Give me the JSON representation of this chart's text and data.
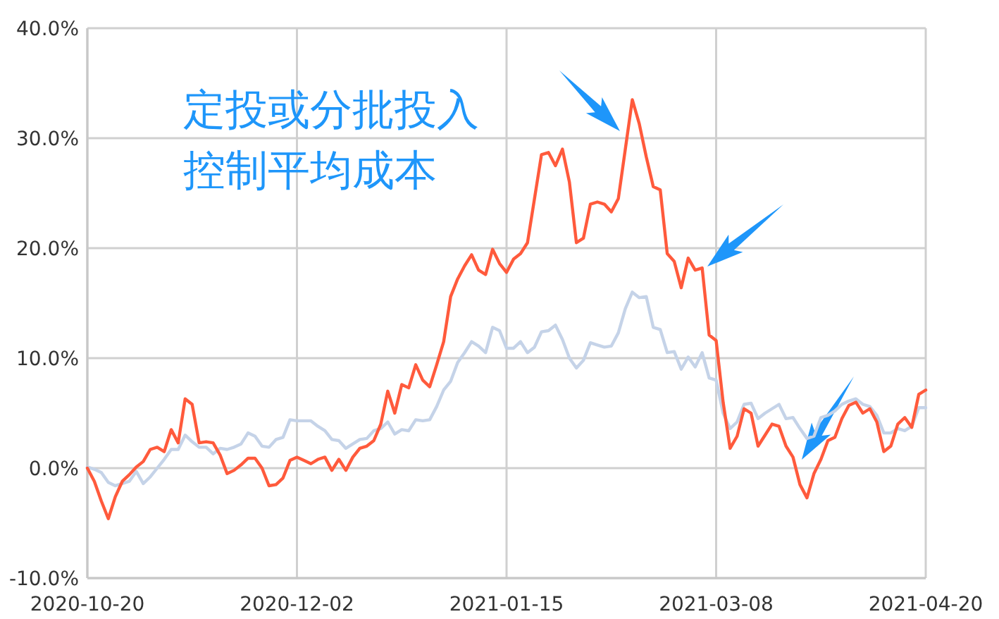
{
  "chart_data": {
    "type": "line",
    "categories": [
      "2020-10-20",
      null,
      null,
      null,
      null,
      null,
      null,
      null,
      null,
      null,
      null,
      null,
      null,
      null,
      null,
      null,
      null,
      null,
      null,
      null,
      null,
      null,
      null,
      null,
      null,
      null,
      null,
      null,
      null,
      null,
      "2020-12-02",
      null,
      null,
      null,
      null,
      null,
      null,
      null,
      null,
      null,
      null,
      null,
      null,
      null,
      null,
      null,
      null,
      null,
      null,
      null,
      null,
      null,
      null,
      null,
      null,
      null,
      null,
      null,
      null,
      null,
      "2021-01-15",
      null,
      null,
      null,
      null,
      null,
      null,
      null,
      null,
      null,
      null,
      null,
      null,
      null,
      null,
      null,
      null,
      null,
      null,
      null,
      null,
      null,
      null,
      null,
      null,
      null,
      null,
      null,
      null,
      null,
      "2021-03-08",
      null,
      null,
      null,
      null,
      null,
      null,
      null,
      null,
      null,
      null,
      null,
      null,
      null,
      null,
      null,
      null,
      null,
      null,
      null,
      null,
      null,
      null,
      null,
      null,
      null,
      null,
      null,
      null,
      null,
      "2021-04-20"
    ],
    "series": [
      {
        "color": "#c5d3e8",
        "values": [
          0.1,
          -0.1,
          -0.4,
          -1.3,
          -1.6,
          -1.4,
          -1.2,
          -0.3,
          -1.4,
          -0.8,
          0.0,
          0.8,
          1.7,
          1.7,
          3.0,
          2.4,
          1.9,
          1.9,
          1.3,
          1.8,
          1.7,
          1.9,
          2.2,
          3.2,
          2.9,
          2.0,
          1.9,
          2.6,
          2.8,
          4.4,
          4.3,
          4.3,
          4.3,
          3.8,
          3.4,
          2.6,
          2.5,
          1.8,
          2.2,
          2.6,
          2.7,
          3.4,
          3.6,
          4.2,
          3.1,
          3.5,
          3.4,
          4.4,
          4.3,
          4.4,
          5.6,
          7.1,
          7.9,
          9.6,
          10.5,
          11.5,
          11.1,
          10.5,
          12.8,
          12.5,
          10.9,
          10.9,
          11.5,
          10.5,
          11.0,
          12.4,
          12.5,
          13.0,
          11.7,
          10.0,
          9.1,
          9.8,
          11.4,
          11.2,
          11.0,
          11.1,
          12.3,
          14.5,
          16.0,
          15.5,
          15.6,
          12.8,
          12.6,
          10.5,
          10.6,
          9.0,
          10.1,
          9.2,
          10.5,
          8.2,
          8.0,
          5.0,
          3.6,
          4.2,
          5.8,
          5.9,
          4.5,
          5.0,
          5.4,
          5.8,
          4.5,
          4.6,
          3.6,
          2.7,
          2.9,
          4.6,
          4.8,
          5.2,
          5.8,
          6.1,
          6.3,
          5.8,
          5.6,
          4.8,
          3.2,
          3.2,
          3.6,
          3.4,
          3.8,
          5.5,
          5.5
        ]
      },
      {
        "color": "#ff5a3c",
        "values": [
          0.0,
          -1.2,
          -3.0,
          -4.6,
          -2.6,
          -1.2,
          -0.6,
          0.1,
          0.6,
          1.7,
          1.9,
          1.5,
          3.5,
          2.3,
          6.3,
          5.8,
          2.3,
          2.4,
          2.3,
          1.2,
          -0.5,
          -0.2,
          0.3,
          0.9,
          0.9,
          0.0,
          -1.6,
          -1.5,
          -0.9,
          0.7,
          1.0,
          0.7,
          0.4,
          0.8,
          1.0,
          -0.2,
          0.8,
          -0.2,
          1.0,
          1.8,
          2.0,
          2.5,
          4.0,
          7.0,
          5.0,
          7.6,
          7.3,
          9.4,
          8.0,
          7.4,
          9.4,
          11.5,
          15.6,
          17.2,
          18.4,
          19.4,
          18.0,
          17.6,
          19.9,
          18.6,
          17.8,
          19.0,
          19.5,
          20.5,
          24.5,
          28.5,
          28.7,
          27.5,
          29.0,
          26.0,
          20.5,
          20.9,
          24.0,
          24.2,
          24.0,
          23.3,
          24.5,
          29.0,
          33.5,
          31.3,
          28.3,
          25.6,
          25.3,
          19.5,
          18.8,
          16.4,
          19.1,
          18.0,
          18.2,
          12.1,
          11.6,
          6.0,
          1.8,
          2.9,
          5.4,
          5.0,
          2.0,
          3.0,
          4.0,
          3.8,
          2.0,
          1.0,
          -1.5,
          -2.7,
          -0.5,
          0.8,
          2.5,
          2.8,
          4.5,
          5.7,
          6.0,
          5.0,
          5.4,
          4.2,
          1.5,
          2.0,
          4.0,
          4.6,
          3.7,
          6.7,
          7.1
        ]
      }
    ],
    "ylim": [
      -10,
      40
    ],
    "yticks": [
      {
        "value": -10,
        "label": "-10.0%"
      },
      {
        "value": 0,
        "label": "0.0%"
      },
      {
        "value": 10,
        "label": "10.0%"
      },
      {
        "value": 20,
        "label": "20.0%"
      },
      {
        "value": 30,
        "label": "30.0%"
      },
      {
        "value": 40,
        "label": "40.0%"
      }
    ],
    "grid": true,
    "annotations": [
      "定投或分批投入",
      "控制平均成本"
    ]
  }
}
